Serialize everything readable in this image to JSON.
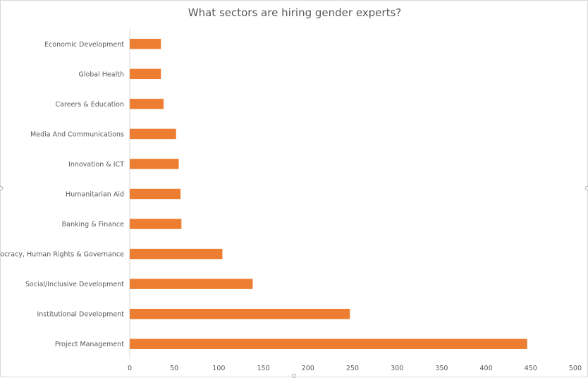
{
  "chart_data": {
    "type": "bar",
    "orientation": "horizontal",
    "title": "What sectors are hiring gender experts?",
    "categories": [
      "Economic Development",
      "Global Health",
      "Careers & Education",
      "Media And Communications",
      "Innovation & ICT",
      "Humanitarian Aid",
      "Banking & Finance",
      "Democracy, Human Rights & Governance",
      "Social/Inclusive Development",
      "Institutional Development",
      "Project Management"
    ],
    "values": [
      35,
      35,
      38,
      52,
      55,
      57,
      58,
      104,
      138,
      247,
      446
    ],
    "xlim": [
      0,
      500
    ],
    "xticks": [
      "0",
      "50",
      "100",
      "150",
      "200",
      "250",
      "300",
      "350",
      "400",
      "450",
      "500"
    ],
    "bar_color": "#ED7D31",
    "grid": false,
    "legend": "none"
  }
}
